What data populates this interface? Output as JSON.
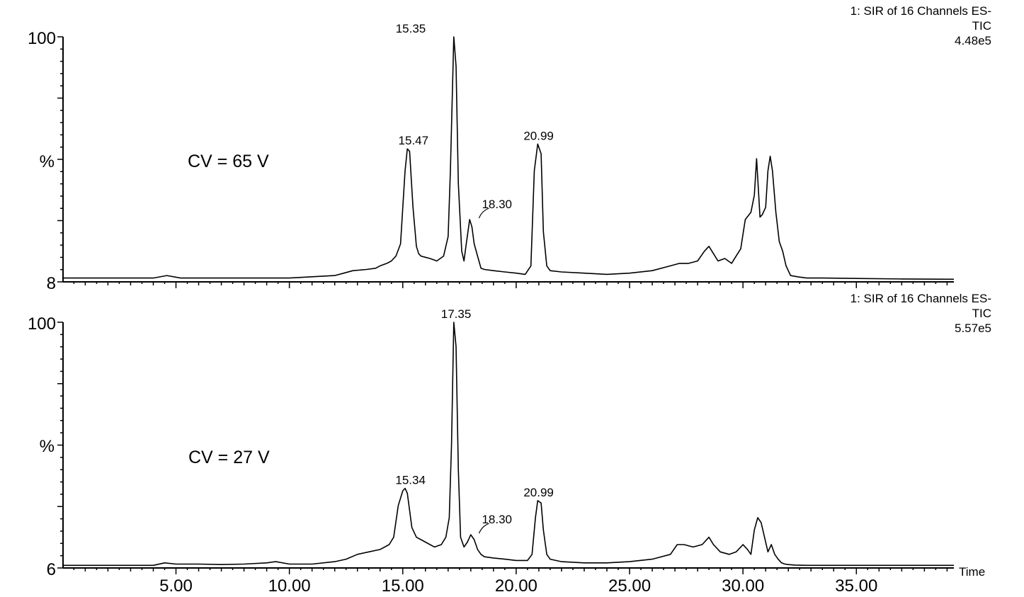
{
  "chart_data": [
    {
      "type": "line",
      "title": "",
      "instrument_lines": [
        "1: SIR of 16 Channels ES-",
        "TIC",
        "4.48e5"
      ],
      "annotation": "CV = 65 V",
      "ylabel": "%",
      "y_ticks": [
        "100",
        "8"
      ],
      "ylim": [
        0,
        100
      ],
      "xlim": [
        0.02,
        39.3
      ],
      "x_ticks": [],
      "peak_labels": [
        {
          "x": 15.35,
          "label": "15.35",
          "y": 100
        },
        {
          "x": 15.47,
          "label": "15.47",
          "y": 54
        },
        {
          "x": 18.3,
          "label": "18.30",
          "y": 25
        },
        {
          "x": 20.99,
          "label": "20.99",
          "y": 56
        }
      ],
      "series": [
        {
          "x": [
            0.02,
            2,
            4.0,
            4.6,
            5.2,
            8,
            10,
            11,
            12,
            12.4,
            12.8,
            13.4,
            13.8,
            14.0,
            14.3,
            14.5,
            14.7,
            14.9,
            15.0,
            15.1,
            15.2,
            15.3,
            15.45,
            15.6,
            15.7,
            15.8,
            16.0,
            16.2,
            16.5,
            16.8,
            17.0,
            17.1,
            17.25,
            17.35,
            17.45,
            17.6,
            17.7,
            17.8,
            17.95,
            18.05,
            18.15,
            18.3,
            18.45,
            18.6,
            19.0,
            19.5,
            20.0,
            20.4,
            20.65,
            20.8,
            20.95,
            21.1,
            21.2,
            21.35,
            21.5,
            22.0,
            23.0,
            24.0,
            25.0,
            26.0,
            26.8,
            27.2,
            27.6,
            28.0,
            28.3,
            28.5,
            28.7,
            28.9,
            29.2,
            29.5,
            29.7,
            29.9,
            30.1,
            30.35,
            30.5,
            30.6,
            30.75,
            30.85,
            31.0,
            31.1,
            31.2,
            31.3,
            31.45,
            31.6,
            31.75,
            31.9,
            32.1,
            32.4,
            32.8,
            33.5,
            35,
            37,
            39.3
          ],
          "values": [
            1,
            1,
            1,
            2,
            1,
            1,
            1,
            1.5,
            2,
            3,
            4,
            4.5,
            5,
            6,
            7,
            8,
            10,
            15,
            30,
            45,
            54,
            53,
            30,
            14,
            11,
            10,
            9.5,
            9,
            8,
            10,
            18,
            45,
            100,
            88,
            40,
            12,
            8,
            15,
            25,
            22,
            15,
            10,
            5,
            4.5,
            4,
            3.5,
            3,
            2.5,
            6,
            45,
            56,
            52,
            20,
            6,
            4,
            3.5,
            3,
            2.5,
            3,
            4,
            6,
            7,
            7,
            8,
            12,
            14,
            11,
            8,
            9,
            7,
            10,
            13,
            25,
            28,
            35,
            50,
            26,
            27,
            30,
            45,
            51,
            45,
            28,
            16,
            12,
            6,
            2,
            1.5,
            1,
            1,
            0.8,
            0.6,
            0.5
          ]
        }
      ]
    },
    {
      "type": "line",
      "title": "",
      "instrument_lines": [
        "1: SIR of 16 Channels ES-",
        "TIC",
        "5.57e5"
      ],
      "annotation": "CV = 27 V",
      "ylabel": "%",
      "y_ticks": [
        "100",
        "6"
      ],
      "ylim": [
        0,
        100
      ],
      "xlim": [
        0.02,
        39.3
      ],
      "xlabel": "Time",
      "x_ticks": [
        "5.00",
        "10.00",
        "15.00",
        "20.00",
        "25.00",
        "30.00",
        "35.00"
      ],
      "peak_labels": [
        {
          "x": 17.35,
          "label": "17.35",
          "y": 100
        },
        {
          "x": 15.34,
          "label": "15.34",
          "y": 32
        },
        {
          "x": 18.3,
          "label": "18.30",
          "y": 13
        },
        {
          "x": 20.99,
          "label": "20.99",
          "y": 27
        }
      ],
      "series": [
        {
          "x": [
            0.02,
            3,
            4.0,
            4.5,
            5.0,
            6.0,
            7.0,
            8.0,
            9.0,
            9.4,
            10.0,
            11.0,
            12.0,
            12.5,
            13.0,
            13.5,
            14.0,
            14.4,
            14.6,
            14.8,
            15.0,
            15.1,
            15.2,
            15.4,
            15.6,
            15.8,
            16.0,
            16.4,
            16.7,
            16.9,
            17.05,
            17.15,
            17.25,
            17.35,
            17.45,
            17.55,
            17.7,
            17.85,
            18.0,
            18.15,
            18.3,
            18.45,
            18.6,
            19.0,
            19.5,
            20.0,
            20.5,
            20.7,
            20.85,
            20.95,
            21.1,
            21.2,
            21.35,
            21.5,
            22,
            23,
            24,
            25,
            26,
            26.8,
            27.1,
            27.4,
            27.8,
            28.2,
            28.5,
            28.7,
            29.0,
            29.4,
            29.7,
            30.0,
            30.2,
            30.35,
            30.5,
            30.65,
            30.8,
            30.95,
            31.1,
            31.25,
            31.4,
            31.55,
            31.7,
            31.85,
            32.0,
            32.3,
            32.8,
            33.5,
            36,
            39.3
          ],
          "values": [
            0.5,
            0.5,
            0.5,
            1.5,
            1,
            1,
            0.8,
            1,
            1.5,
            2,
            1,
            1,
            2,
            3,
            5,
            6,
            7,
            9,
            12,
            25,
            31,
            32,
            30,
            16,
            12,
            11,
            10,
            8,
            9,
            12,
            20,
            50,
            100,
            90,
            40,
            12,
            8,
            10,
            13,
            11,
            7,
            5,
            4,
            3.5,
            3,
            2.5,
            2.5,
            5,
            20,
            27,
            26,
            15,
            5,
            3,
            2,
            1.5,
            1.5,
            2,
            3,
            5,
            9,
            9,
            8,
            9,
            12,
            9,
            6,
            5,
            6,
            9,
            7,
            5,
            15,
            20,
            18,
            12,
            6,
            9,
            5,
            3,
            1.5,
            1,
            0.8,
            0.6,
            0.5,
            0.5,
            0.5,
            0.5
          ]
        }
      ]
    }
  ]
}
